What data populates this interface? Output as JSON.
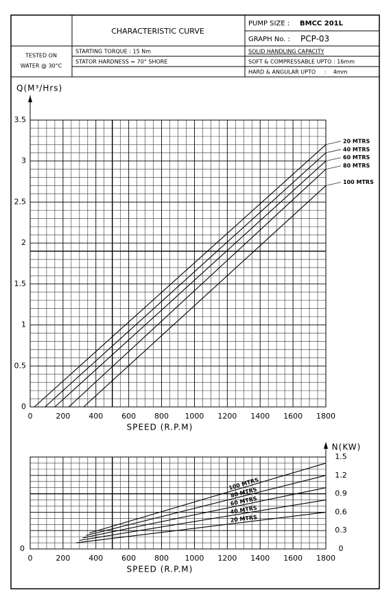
{
  "header": {
    "title": "CHARACTERISTIC CURVE",
    "pump_size_label": "PUMP SIZE :",
    "pump_size": "BMCC 201L",
    "graph_no_label": "GRAPH No. :",
    "graph_no": "PCP-03",
    "tested_line1": "TESTED ON",
    "tested_line2": "WATER @ 30°C",
    "starting_torque": "STARTING TORQUE : 15 Nm",
    "stator_hardness": "STATOR HARDNESS = 70° SHORE",
    "solid_handling": "SOLID HANDLING CAPACITY",
    "soft": "SOFT & COMPRESSABLE UPTO : 16mm",
    "hard": "HARD & ANGULAR UPTO     :    4mm"
  },
  "chart_data": [
    {
      "type": "line",
      "y_label": "Q(M³/Hrs)",
      "x_label": "SPEED (R.P.M)",
      "xlim": [
        0,
        1800
      ],
      "xticks": [
        0,
        200,
        400,
        600,
        800,
        1000,
        1200,
        1400,
        1600,
        1800
      ],
      "ylim": [
        0,
        3.5
      ],
      "yticks": [
        0,
        0.5,
        1,
        1.5,
        2,
        2.5,
        3,
        3.5
      ],
      "grid": true,
      "x_minor": 4,
      "y_minor": 5,
      "xref": 500,
      "yref": 1.9,
      "label_position": "right",
      "series": [
        {
          "name": "20 MTRS",
          "color": "#000000",
          "x": [
            25,
            1800
          ],
          "values": [
            0,
            3.2
          ]
        },
        {
          "name": "40 MTRS",
          "color": "#000000",
          "x": [
            90,
            1800
          ],
          "values": [
            0,
            3.1
          ]
        },
        {
          "name": "60 MTRS",
          "color": "#000000",
          "x": [
            150,
            1800
          ],
          "values": [
            0,
            3.0
          ]
        },
        {
          "name": "80 MTRS",
          "color": "#000000",
          "x": [
            235,
            1800
          ],
          "values": [
            0,
            2.9
          ]
        },
        {
          "name": "100 MTRS",
          "color": "#000000",
          "x": [
            325,
            1800
          ],
          "values": [
            0,
            2.7
          ]
        }
      ]
    },
    {
      "type": "line",
      "y_label": "N(KW)",
      "x_label": "SPEED (R.P.M)",
      "xlim": [
        0,
        1800
      ],
      "xticks": [
        0,
        200,
        400,
        600,
        800,
        1000,
        1200,
        1400,
        1600,
        1800
      ],
      "ylim": [
        0,
        1.5
      ],
      "yticks": [
        0,
        0.3,
        0.6,
        0.9,
        1.2,
        1.5
      ],
      "grid": true,
      "x_minor": 4,
      "y_minor": 3,
      "xref": 500,
      "yref": 0.9,
      "label_position": "inline",
      "y_axis_side": "right",
      "series": [
        {
          "name": "100 MTRS",
          "color": "#000000",
          "x": [
            360,
            1800
          ],
          "values": [
            0.26,
            1.4
          ]
        },
        {
          "name": "80 MTRS",
          "color": "#000000",
          "x": [
            340,
            1800
          ],
          "values": [
            0.22,
            1.2
          ]
        },
        {
          "name": "60 MTRS",
          "color": "#000000",
          "x": [
            320,
            1800
          ],
          "values": [
            0.18,
            1.0
          ]
        },
        {
          "name": "40 MTRS",
          "color": "#000000",
          "x": [
            300,
            1800
          ],
          "values": [
            0.14,
            0.8
          ]
        },
        {
          "name": "20 MTRS",
          "color": "#000000",
          "x": [
            280,
            1800
          ],
          "values": [
            0.1,
            0.6
          ]
        }
      ]
    }
  ]
}
